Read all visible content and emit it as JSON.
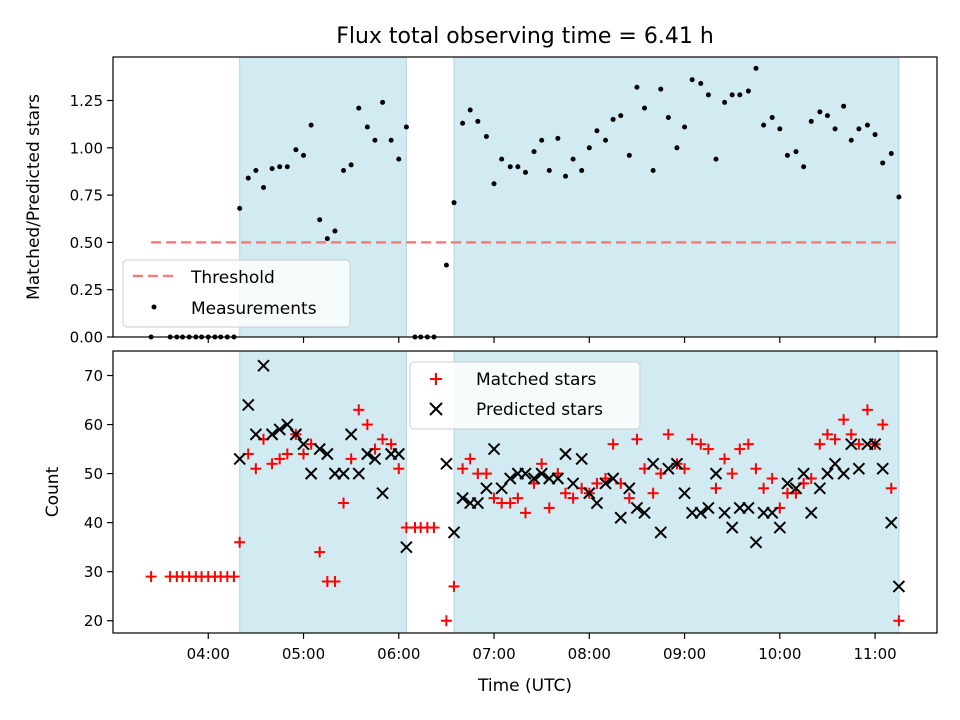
{
  "chart_data": [
    {
      "type": "scatter",
      "title": "Flux total observing time = 6.41 h",
      "xlabel": "",
      "ylabel": "Matched/Predicted stars",
      "xlim_hours": [
        3.0,
        11.65
      ],
      "ylim": [
        0,
        1.48
      ],
      "yticks": [
        0.0,
        0.25,
        0.5,
        0.75,
        1.0,
        1.25
      ],
      "ytick_labels": [
        "0.00",
        "0.25",
        "0.50",
        "0.75",
        "1.00",
        "1.25"
      ],
      "shaded_intervals_hours": [
        [
          4.33,
          6.08
        ],
        [
          6.58,
          11.25
        ]
      ],
      "shade_color": "#add8e6",
      "legend_position": "lower-left",
      "threshold": {
        "label": "Threshold",
        "value": 0.5,
        "x_range_hours": [
          3.4,
          11.25
        ],
        "color": "#f08080"
      },
      "series": [
        {
          "name": "Measurements",
          "marker": "dot",
          "color": "#000000",
          "x": [
            3.4,
            3.6,
            3.67,
            3.73,
            3.8,
            3.87,
            3.93,
            4.0,
            4.07,
            4.13,
            4.2,
            4.27,
            4.33,
            4.42,
            4.5,
            4.58,
            4.67,
            4.75,
            4.83,
            4.92,
            5.0,
            5.08,
            5.17,
            5.25,
            5.33,
            5.42,
            5.5,
            5.58,
            5.67,
            5.75,
            5.83,
            5.92,
            6.0,
            6.08,
            6.17,
            6.23,
            6.3,
            6.37,
            6.5,
            6.58,
            6.67,
            6.75,
            6.83,
            6.92,
            7.0,
            7.08,
            7.17,
            7.25,
            7.33,
            7.42,
            7.5,
            7.58,
            7.67,
            7.75,
            7.83,
            7.92,
            8.0,
            8.08,
            8.17,
            8.25,
            8.33,
            8.42,
            8.5,
            8.58,
            8.67,
            8.75,
            8.83,
            8.92,
            9.0,
            9.08,
            9.17,
            9.25,
            9.33,
            9.42,
            9.5,
            9.58,
            9.67,
            9.75,
            9.83,
            9.92,
            10.0,
            10.08,
            10.17,
            10.25,
            10.33,
            10.42,
            10.5,
            10.58,
            10.67,
            10.75,
            10.83,
            10.92,
            11.0,
            11.08,
            11.17,
            11.25
          ],
          "y": [
            0.0,
            0.0,
            0.0,
            0.0,
            0.0,
            0.0,
            0.0,
            0.0,
            0.0,
            0.0,
            0.0,
            0.0,
            0.68,
            0.84,
            0.88,
            0.79,
            0.89,
            0.9,
            0.9,
            0.99,
            0.96,
            1.12,
            0.62,
            0.52,
            0.56,
            0.88,
            0.91,
            1.21,
            1.11,
            1.04,
            1.24,
            1.04,
            0.94,
            1.11,
            0.0,
            0.0,
            0.0,
            0.0,
            0.38,
            0.71,
            1.13,
            1.2,
            1.14,
            1.06,
            0.81,
            0.94,
            0.9,
            0.9,
            0.87,
            0.98,
            1.04,
            0.88,
            1.05,
            0.85,
            0.94,
            0.88,
            1.0,
            1.09,
            1.04,
            1.15,
            1.17,
            0.96,
            1.32,
            1.21,
            0.88,
            1.31,
            1.16,
            1.0,
            1.11,
            1.36,
            1.34,
            1.28,
            0.94,
            1.24,
            1.28,
            1.28,
            1.3,
            1.42,
            1.12,
            1.16,
            1.1,
            0.96,
            0.98,
            0.9,
            1.14,
            1.19,
            1.17,
            1.1,
            1.22,
            1.04,
            1.1,
            1.12,
            1.07,
            0.92,
            0.97,
            0.74
          ]
        }
      ]
    },
    {
      "type": "scatter",
      "title": "",
      "xlabel": "Time (UTC)",
      "ylabel": "Count",
      "xlim_hours": [
        3.0,
        11.65
      ],
      "ylim": [
        17.5,
        75
      ],
      "xticks_hours": [
        4,
        5,
        6,
        7,
        8,
        9,
        10,
        11
      ],
      "xtick_labels": [
        "04:00",
        "05:00",
        "06:00",
        "07:00",
        "08:00",
        "09:00",
        "10:00",
        "11:00"
      ],
      "yticks": [
        20,
        30,
        40,
        50,
        60,
        70
      ],
      "ytick_labels": [
        "20",
        "30",
        "40",
        "50",
        "60",
        "70"
      ],
      "shaded_intervals_hours": [
        [
          4.33,
          6.08
        ],
        [
          6.58,
          11.25
        ]
      ],
      "shade_color": "#add8e6",
      "legend_position": "upper-center",
      "series": [
        {
          "name": "Matched stars",
          "marker": "plus",
          "color": "#ff0000",
          "x": [
            3.4,
            3.6,
            3.67,
            3.73,
            3.8,
            3.87,
            3.93,
            4.0,
            4.07,
            4.13,
            4.2,
            4.27,
            4.33,
            4.42,
            4.5,
            4.58,
            4.67,
            4.75,
            4.83,
            4.92,
            5.0,
            5.08,
            5.17,
            5.25,
            5.33,
            5.42,
            5.5,
            5.58,
            5.67,
            5.75,
            5.83,
            5.92,
            6.0,
            6.08,
            6.17,
            6.23,
            6.3,
            6.37,
            6.5,
            6.58,
            6.67,
            6.75,
            6.83,
            6.92,
            7.0,
            7.08,
            7.17,
            7.25,
            7.33,
            7.42,
            7.5,
            7.58,
            7.67,
            7.75,
            7.83,
            7.92,
            8.0,
            8.08,
            8.17,
            8.25,
            8.33,
            8.42,
            8.5,
            8.58,
            8.67,
            8.75,
            8.83,
            8.92,
            9.0,
            9.08,
            9.17,
            9.25,
            9.33,
            9.42,
            9.5,
            9.58,
            9.67,
            9.75,
            9.83,
            9.92,
            10.0,
            10.08,
            10.17,
            10.25,
            10.33,
            10.42,
            10.5,
            10.58,
            10.67,
            10.75,
            10.83,
            10.92,
            11.0,
            11.08,
            11.17,
            11.25
          ],
          "y": [
            29,
            29,
            29,
            29,
            29,
            29,
            29,
            29,
            29,
            29,
            29,
            29,
            36,
            54,
            51,
            57,
            52,
            53,
            54,
            58,
            54,
            56,
            34,
            28,
            28,
            44,
            53,
            63,
            60,
            55,
            57,
            56,
            51,
            39,
            39,
            39,
            39,
            39,
            20,
            27,
            51,
            53,
            50,
            50,
            45,
            44,
            44,
            45,
            42,
            48,
            52,
            43,
            50,
            46,
            45,
            47,
            46,
            48,
            49,
            56,
            48,
            45,
            57,
            51,
            46,
            50,
            58,
            52,
            51,
            57,
            56,
            55,
            47,
            53,
            50,
            55,
            56,
            51,
            47,
            49,
            43,
            46,
            46,
            48,
            49,
            56,
            58,
            57,
            61,
            58,
            56,
            63,
            56,
            60,
            47,
            20
          ]
        },
        {
          "name": "Predicted stars",
          "marker": "x",
          "color": "#000000",
          "x": [
            4.33,
            4.42,
            4.5,
            4.58,
            4.67,
            4.75,
            4.83,
            4.92,
            5.0,
            5.08,
            5.17,
            5.25,
            5.33,
            5.42,
            5.5,
            5.58,
            5.67,
            5.75,
            5.83,
            5.92,
            6.0,
            6.08,
            6.5,
            6.58,
            6.67,
            6.75,
            6.83,
            6.92,
            7.0,
            7.08,
            7.17,
            7.25,
            7.33,
            7.42,
            7.5,
            7.58,
            7.67,
            7.75,
            7.83,
            7.92,
            8.0,
            8.08,
            8.17,
            8.25,
            8.33,
            8.42,
            8.5,
            8.58,
            8.67,
            8.75,
            8.83,
            8.92,
            9.0,
            9.08,
            9.17,
            9.25,
            9.33,
            9.42,
            9.5,
            9.58,
            9.67,
            9.75,
            9.83,
            9.92,
            10.0,
            10.08,
            10.17,
            10.25,
            10.33,
            10.42,
            10.5,
            10.58,
            10.67,
            10.75,
            10.83,
            10.92,
            11.0,
            11.08,
            11.17,
            11.25
          ],
          "y": [
            53,
            64,
            58,
            72,
            58,
            59,
            60,
            58,
            56,
            50,
            55,
            54,
            50,
            50,
            58,
            50,
            54,
            53,
            46,
            54,
            54,
            35,
            52,
            38,
            45,
            44,
            44,
            47,
            55,
            47,
            49,
            50,
            50,
            49,
            50,
            49,
            49,
            54,
            48,
            53,
            46,
            44,
            48,
            49,
            41,
            47,
            43,
            42,
            52,
            38,
            51,
            52,
            46,
            42,
            42,
            43,
            50,
            42,
            39,
            43,
            43,
            36,
            42,
            42,
            39,
            48,
            47,
            50,
            42,
            47,
            50,
            52,
            50,
            56,
            51,
            56,
            56,
            51,
            40,
            27
          ]
        }
      ]
    }
  ]
}
